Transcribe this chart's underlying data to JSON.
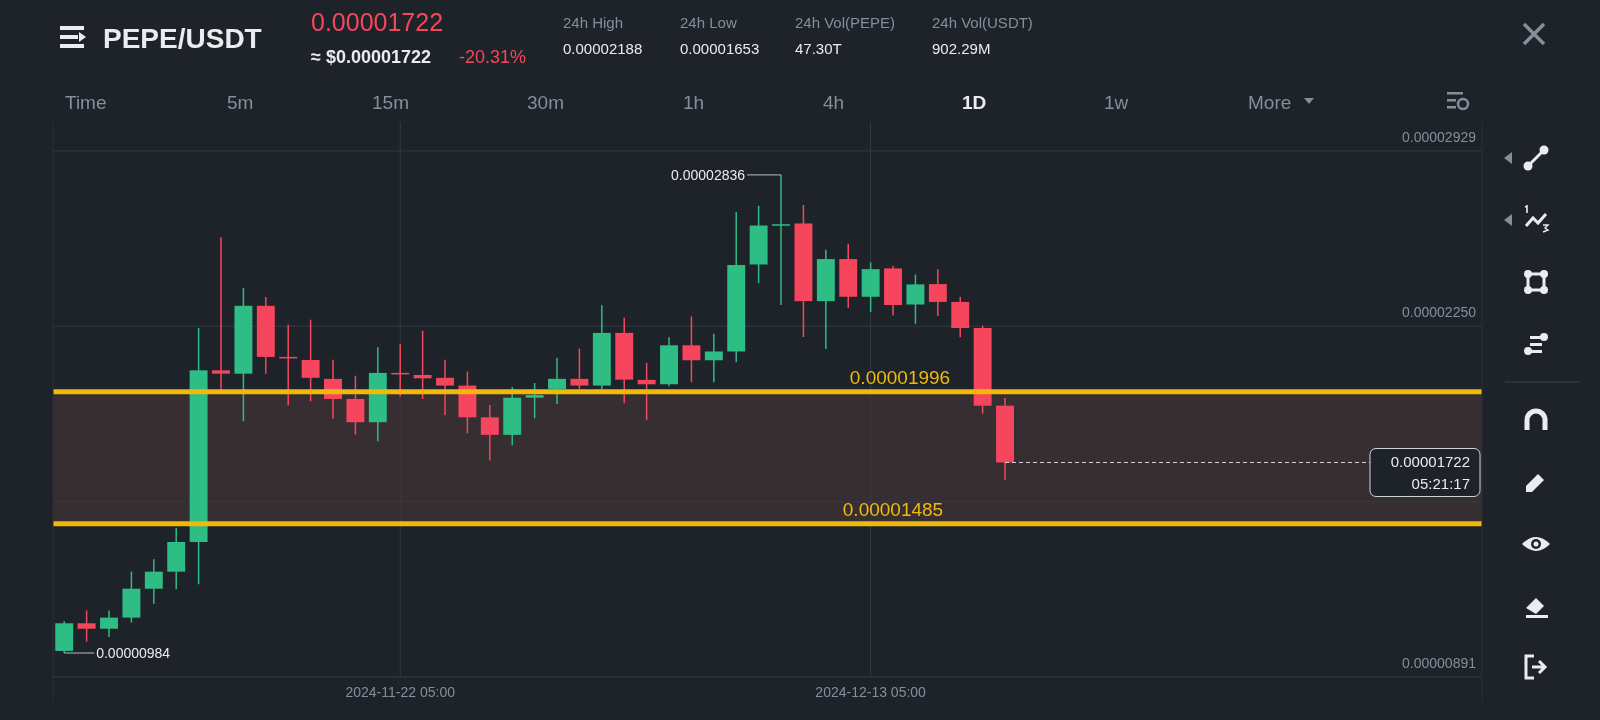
{
  "chart_data": {
    "type": "candlestick",
    "title": "PEPE/USDT",
    "x": [
      "2024-11-07T05:00",
      "2024-11-08T05:00",
      "2024-11-09T05:00",
      "2024-11-10T05:00",
      "2024-11-11T05:00",
      "2024-11-12T05:00",
      "2024-11-13T05:00",
      "2024-11-14T05:00",
      "2024-11-15T05:00",
      "2024-11-16T05:00",
      "2024-11-17T05:00",
      "2024-11-18T05:00",
      "2024-11-19T05:00",
      "2024-11-20T05:00",
      "2024-11-21T05:00",
      "2024-11-22T05:00",
      "2024-11-23T05:00",
      "2024-11-24T05:00",
      "2024-11-25T05:00",
      "2024-11-26T05:00",
      "2024-11-27T05:00",
      "2024-11-28T05:00",
      "2024-11-29T05:00",
      "2024-11-30T05:00",
      "2024-12-01T05:00",
      "2024-12-02T05:00",
      "2024-12-03T05:00",
      "2024-12-04T05:00",
      "2024-12-05T05:00",
      "2024-12-06T05:00",
      "2024-12-07T05:00",
      "2024-12-08T05:00",
      "2024-12-09T05:00",
      "2024-12-10T05:00",
      "2024-12-11T05:00",
      "2024-12-12T05:00",
      "2024-12-13T05:00",
      "2024-12-14T05:00",
      "2024-12-15T05:00",
      "2024-12-16T05:00",
      "2024-12-17T05:00",
      "2024-12-18T05:00",
      "2024-12-19T05:00"
    ],
    "ohlc": [
      [
        9.92e-06,
        1.107e-05,
        9.84e-06,
        1.099e-05
      ],
      [
        1.099e-05,
        1.149e-05,
        1.028e-05,
        1.078e-05
      ],
      [
        1.078e-05,
        1.149e-05,
        1.046e-05,
        1.121e-05
      ],
      [
        1.121e-05,
        1.299e-05,
        1.102e-05,
        1.233e-05
      ],
      [
        1.233e-05,
        1.347e-05,
        1.175e-05,
        1.299e-05
      ],
      [
        1.299e-05,
        1.469e-05,
        1.231e-05,
        1.414e-05
      ],
      [
        1.414e-05,
        2.243e-05,
        1.25e-05,
        2.079e-05
      ],
      [
        2.079e-05,
        2.595e-05,
        2.004e-05,
        2.066e-05
      ],
      [
        2.066e-05,
        2.398e-05,
        1.882e-05,
        2.329e-05
      ],
      [
        2.329e-05,
        2.363e-05,
        2.066e-05,
        2.131e-05
      ],
      [
        2.131e-05,
        2.256e-05,
        1.944e-05,
        2.126e-05
      ],
      [
        2.119e-05,
        2.275e-05,
        1.959e-05,
        2.05e-05
      ],
      [
        2.046e-05,
        2.12e-05,
        1.891e-05,
        1.968e-05
      ],
      [
        1.968e-05,
        2.058e-05,
        1.83e-05,
        1.878e-05
      ],
      [
        1.878e-05,
        2.168e-05,
        1.804e-05,
        2.069e-05
      ],
      [
        2.069e-05,
        2.181e-05,
        1.978e-05,
        2.064e-05
      ],
      [
        2.061e-05,
        2.233e-05,
        1.968e-05,
        2.048e-05
      ],
      [
        2.05e-05,
        2.12e-05,
        1.905e-05,
        2.02e-05
      ],
      [
        2.02e-05,
        2.074e-05,
        1.835e-05,
        1.897e-05
      ],
      [
        1.897e-05,
        1.945e-05,
        1.73e-05,
        1.829e-05
      ],
      [
        1.829e-05,
        2.013e-05,
        1.789e-05,
        1.973e-05
      ],
      [
        1.973e-05,
        2.03e-05,
        1.893e-05,
        1.983e-05
      ],
      [
        2.007e-05,
        2.128e-05,
        1.949e-05,
        2.046e-05
      ],
      [
        2.046e-05,
        2.163e-05,
        2.007e-05,
        2.02e-05
      ],
      [
        2.02e-05,
        2.331e-05,
        2.004e-05,
        2.224e-05
      ],
      [
        2.224e-05,
        2.283e-05,
        1.951e-05,
        2.043e-05
      ],
      [
        2.042e-05,
        2.108e-05,
        1.886e-05,
        2.025e-05
      ],
      [
        2.025e-05,
        2.207e-05,
        2.017e-05,
        2.176e-05
      ],
      [
        2.176e-05,
        2.288e-05,
        2.033e-05,
        2.118e-05
      ],
      [
        2.118e-05,
        2.221e-05,
        2.033e-05,
        2.152e-05
      ],
      [
        2.152e-05,
        2.692e-05,
        2.11e-05,
        2.487e-05
      ],
      [
        2.489e-05,
        2.716e-05,
        2.417e-05,
        2.64e-05
      ],
      [
        2.64e-05,
        2.836e-05,
        2.332e-05,
        2.645e-05
      ],
      [
        2.648e-05,
        2.72e-05,
        2.208e-05,
        2.347e-05
      ],
      [
        2.347e-05,
        2.546e-05,
        2.162e-05,
        2.51e-05
      ],
      [
        2.51e-05,
        2.569e-05,
        2.32e-05,
        2.364e-05
      ],
      [
        2.364e-05,
        2.497e-05,
        2.305e-05,
        2.471e-05
      ],
      [
        2.474e-05,
        2.484e-05,
        2.291e-05,
        2.332e-05
      ],
      [
        2.334e-05,
        2.45e-05,
        2.259e-05,
        2.412e-05
      ],
      [
        2.413e-05,
        2.471e-05,
        2.289e-05,
        2.344e-05
      ],
      [
        2.344e-05,
        2.364e-05,
        2.207e-05,
        2.243e-05
      ],
      [
        2.243e-05,
        2.252e-05,
        1.911e-05,
        1.942e-05
      ],
      [
        1.942e-05,
        1.972e-05,
        1.653e-05,
        1.722e-05
      ]
    ],
    "colors": [
      "#2ebd85",
      "#f6465d",
      "#2ebd85",
      "#2ebd85",
      "#2ebd85",
      "#2ebd85",
      "#2ebd85",
      "#f6465d",
      "#2ebd85",
      "#f6465d",
      "#f6465d",
      "#f6465d",
      "#f6465d",
      "#f6465d",
      "#2ebd85",
      "#f6465d",
      "#f6465d",
      "#f6465d",
      "#f6465d",
      "#f6465d",
      "#2ebd85",
      "#2ebd85",
      "#2ebd85",
      "#f6465d",
      "#2ebd85",
      "#f6465d",
      "#f6465d",
      "#2ebd85",
      "#f6465d",
      "#2ebd85",
      "#2ebd85",
      "#2ebd85",
      "#2ebd85",
      "#f6465d",
      "#2ebd85",
      "#f6465d",
      "#2ebd85",
      "#f6465d",
      "#2ebd85",
      "#f6465d",
      "#f6465d",
      "#f6465d",
      "#f6465d"
    ],
    "xlim": [
      "2024-11-06T17:00",
      "2025-01-09T12:00"
    ],
    "xticks": [
      {
        "value": "2024-11-22T05:00",
        "label": "2024-11-22 05:00"
      },
      {
        "value": "2024-12-13T05:00",
        "label": "2024-12-13 05:00"
      }
    ],
    "ylim": [
      8.91e-06,
      3.041e-05
    ],
    "yticks": [
      {
        "value": 2.929e-05,
        "label": "0.00002929"
      },
      {
        "value": 2.25e-05,
        "label": "0.00002250"
      },
      {
        "value": 1.57e-05,
        "label": null
      },
      {
        "value": 8.91e-06,
        "label": "0.00000891"
      }
    ],
    "grid": true,
    "bands": [
      {
        "axis": "y",
        "from": 1.485e-05,
        "to": 1.996e-05,
        "color": "#3a3033"
      }
    ],
    "ref_lines": [
      {
        "axis": "y",
        "value": 1.996e-05,
        "label": "0.00001996",
        "color": "#f0b90b"
      },
      {
        "axis": "y",
        "value": 1.485e-05,
        "label": "0.00001485",
        "color": "#f0b90b"
      },
      {
        "axis": "y",
        "value": 1.722e-05,
        "label": "0.00001722",
        "color": "#d0d4dc",
        "line_style": "dashed"
      }
    ],
    "annotations": [
      {
        "text": "0.00002836",
        "x": "2024-12-09T05:00",
        "y": 2.836e-05
      },
      {
        "text": "0.00000984",
        "x": "2024-11-07T05:00",
        "y": 9.84e-06
      },
      "0.00001722",
      "≈ $0.00001722",
      "-20.31%",
      "24h High",
      "0.00002188",
      "24h Low",
      "0.00001653",
      "24h Vol(PEPE)",
      "47.30T",
      "24h Vol(USDT)",
      "902.29M",
      "Time",
      "5m",
      "15m",
      "30m",
      "1h",
      "4h",
      "1D",
      "1w",
      "More",
      "05:21:17"
    ]
  }
}
